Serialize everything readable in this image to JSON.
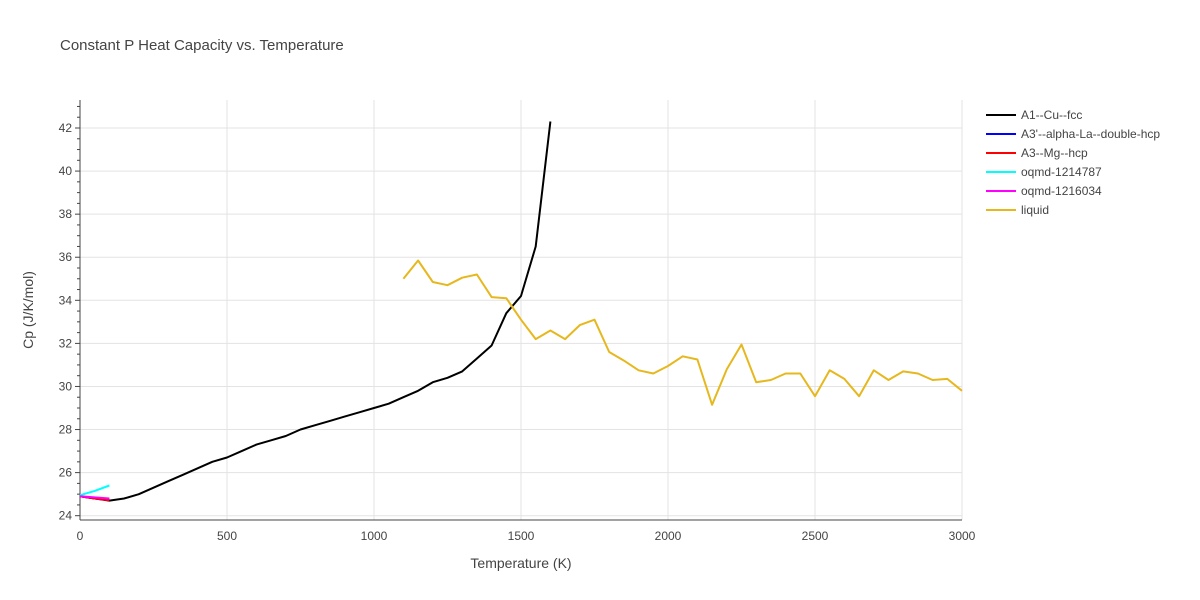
{
  "chart_data": {
    "type": "line",
    "title": "Constant P Heat Capacity vs. Temperature",
    "xlabel": "Temperature (K)",
    "ylabel": "Cp (J/K/mol)",
    "xlim": [
      0,
      3000
    ],
    "ylim": [
      23.8,
      43.3
    ],
    "x_ticks": [
      0,
      500,
      1000,
      1500,
      2000,
      2500,
      3000
    ],
    "x_tick_labels": [
      "0",
      "500",
      "1000",
      "1500",
      "2000",
      "2500",
      "3000"
    ],
    "y_ticks": [
      24,
      26,
      28,
      30,
      32,
      34,
      36,
      38,
      40,
      42
    ],
    "y_tick_labels": [
      "24",
      "26",
      "28",
      "30",
      "32",
      "34",
      "36",
      "38",
      "40",
      "42"
    ],
    "grid": true,
    "legend_position": "top-right",
    "series": [
      {
        "name": "A1--Cu--fcc",
        "color": "#000000",
        "x": [
          0,
          100,
          150,
          200,
          250,
          300,
          350,
          400,
          450,
          500,
          550,
          600,
          650,
          700,
          750,
          800,
          850,
          900,
          950,
          1000,
          1050,
          1100,
          1150,
          1200,
          1250,
          1300,
          1350,
          1400,
          1450,
          1500,
          1550,
          1600
        ],
        "y": [
          24.9,
          24.7,
          24.8,
          25.0,
          25.3,
          25.6,
          25.9,
          26.2,
          26.5,
          26.7,
          27.0,
          27.3,
          27.5,
          27.7,
          28.0,
          28.2,
          28.4,
          28.6,
          28.8,
          29.0,
          29.2,
          29.5,
          29.8,
          30.2,
          30.4,
          30.7,
          31.3,
          31.9,
          33.4,
          34.2,
          36.5,
          42.3
        ]
      },
      {
        "name": "A3'--alpha-La--double-hcp",
        "color": "#0000ff",
        "x": [
          0,
          50,
          100
        ],
        "y": [
          24.9,
          24.8,
          24.75
        ]
      },
      {
        "name": "A3--Mg--hcp",
        "color": "#ff0000",
        "x": [
          0,
          50,
          100
        ],
        "y": [
          24.9,
          24.8,
          24.72
        ]
      },
      {
        "name": "oqmd-1214787",
        "color": "#00ffff",
        "x": [
          0,
          50,
          100
        ],
        "y": [
          24.95,
          25.15,
          25.4
        ]
      },
      {
        "name": "oqmd-1216034",
        "color": "#ff00ff",
        "x": [
          0,
          50,
          100
        ],
        "y": [
          24.9,
          24.85,
          24.8
        ]
      },
      {
        "name": "liquid",
        "color": "#e6b81e",
        "x": [
          1100,
          1150,
          1200,
          1250,
          1300,
          1350,
          1400,
          1450,
          1500,
          1550,
          1600,
          1650,
          1700,
          1750,
          1800,
          1850,
          1900,
          1950,
          2000,
          2050,
          2100,
          2150,
          2200,
          2250,
          2300,
          2350,
          2400,
          2450,
          2500,
          2550,
          2600,
          2650,
          2700,
          2750,
          2800,
          2850,
          2900,
          2950,
          3000
        ],
        "y": [
          35.0,
          35.85,
          34.85,
          34.7,
          35.05,
          35.2,
          34.15,
          34.1,
          33.1,
          32.2,
          32.6,
          32.2,
          32.85,
          33.1,
          31.6,
          31.2,
          30.75,
          30.6,
          30.95,
          31.4,
          31.25,
          29.15,
          30.8,
          31.95,
          30.2,
          30.3,
          30.6,
          30.6,
          29.55,
          30.75,
          30.35,
          29.55,
          30.75,
          30.3,
          30.7,
          30.6,
          30.3,
          30.35,
          29.8
        ]
      }
    ]
  }
}
